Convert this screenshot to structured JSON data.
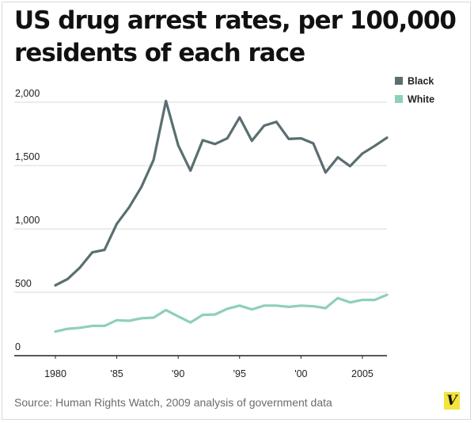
{
  "header": {
    "title_line1": "US drug arrest rates, per 100,000",
    "title_line2": "residents of each race"
  },
  "footer": {
    "source": "Source: Human Rights Watch, 2009 analysis of government data",
    "logo_letter": "V"
  },
  "chart_data": {
    "type": "line",
    "x": [
      1980,
      1981,
      1982,
      1983,
      1984,
      1985,
      1986,
      1987,
      1988,
      1989,
      1990,
      1991,
      1992,
      1993,
      1994,
      1995,
      1996,
      1997,
      1998,
      1999,
      2000,
      2001,
      2002,
      2003,
      2004,
      2005,
      2006,
      2007
    ],
    "xlim": [
      1980,
      2007
    ],
    "ylim": [
      0,
      2000
    ],
    "x_ticks": [
      1980,
      1985,
      1990,
      1995,
      2000,
      2005
    ],
    "x_tick_labels": [
      "1980",
      "'85",
      "'90",
      "'95",
      "'00",
      "2005"
    ],
    "y_ticks": [
      0,
      500,
      1000,
      1500,
      2000
    ],
    "y_tick_labels": [
      "0",
      "500",
      "1,000",
      "1,500",
      "2,000"
    ],
    "grid": "horizontal",
    "legend_position": "top-right",
    "series": [
      {
        "name": "Black",
        "color": "#5b6e71",
        "values": [
          555,
          605,
          695,
          815,
          835,
          1040,
          1170,
          1330,
          1545,
          2010,
          1660,
          1460,
          1700,
          1670,
          1715,
          1880,
          1695,
          1815,
          1845,
          1710,
          1715,
          1675,
          1445,
          1565,
          1495,
          1595,
          1655,
          1720
        ]
      },
      {
        "name": "White",
        "color": "#8fd0b6",
        "values": [
          190,
          212,
          220,
          235,
          235,
          280,
          275,
          295,
          300,
          360,
          310,
          262,
          322,
          325,
          370,
          395,
          365,
          395,
          395,
          385,
          395,
          390,
          375,
          455,
          420,
          440,
          440,
          480
        ]
      }
    ]
  }
}
